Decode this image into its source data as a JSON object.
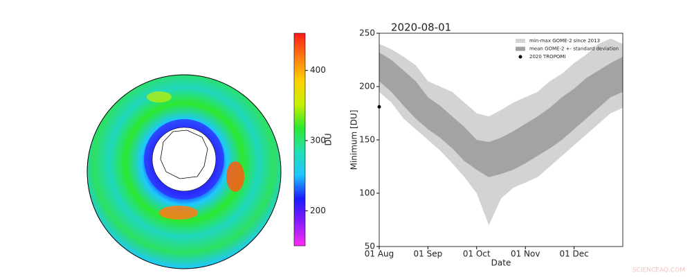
{
  "chart_data": [
    {
      "type": "colorbar",
      "label": "DU",
      "ylim": [
        150,
        453
      ],
      "yticks": [
        200,
        300,
        400
      ],
      "colors": [
        "#ff2cf0",
        "#8a1cff",
        "#1a1aff",
        "#1ec8ff",
        "#20e0b0",
        "#2ee82e",
        "#c8f000",
        "#ffd000",
        "#ff7a10",
        "#ff1a1a"
      ]
    },
    {
      "type": "area",
      "title": "2020-08-01",
      "ylabel": "Minimum [DU]",
      "xlabel": "Date",
      "categories": [
        "01 Aug",
        null,
        null,
        null,
        "01 Sep",
        null,
        null,
        null,
        "01 Oct",
        null,
        null,
        null,
        "01 Nov",
        null,
        null,
        null,
        "01 Dec",
        null,
        null,
        null,
        null
      ],
      "ylim": [
        50,
        250
      ],
      "yticks": [
        50,
        100,
        150,
        200,
        250
      ],
      "legend": "upper right",
      "series": [
        {
          "name": "min-max GOME-2 since 2013",
          "color": "#d3d3d3",
          "values": [
            [
              195,
              240
            ],
            [
              185,
              235
            ],
            [
              170,
              228
            ],
            [
              160,
              220
            ],
            [
              150,
              205
            ],
            [
              140,
              200
            ],
            [
              128,
              195
            ],
            [
              115,
              185
            ],
            [
              100,
              175
            ],
            [
              70,
              172
            ],
            [
              95,
              178
            ],
            [
              105,
              185
            ],
            [
              110,
              190
            ],
            [
              115,
              195
            ],
            [
              125,
              205
            ],
            [
              135,
              212
            ],
            [
              145,
              222
            ],
            [
              155,
              230
            ],
            [
              165,
              240
            ],
            [
              175,
              245
            ],
            [
              180,
              240
            ]
          ]
        },
        {
          "name": "mean GOME-2 +- standard deviation",
          "color": "#a3a3a3",
          "values": [
            [
              205,
              232
            ],
            [
              195,
              225
            ],
            [
              182,
              215
            ],
            [
              170,
              205
            ],
            [
              160,
              190
            ],
            [
              152,
              182
            ],
            [
              142,
              172
            ],
            [
              130,
              162
            ],
            [
              122,
              150
            ],
            [
              115,
              148
            ],
            [
              118,
              152
            ],
            [
              122,
              158
            ],
            [
              128,
              165
            ],
            [
              135,
              172
            ],
            [
              142,
              180
            ],
            [
              150,
              190
            ],
            [
              160,
              198
            ],
            [
              170,
              208
            ],
            [
              180,
              215
            ],
            [
              190,
              222
            ],
            [
              195,
              228
            ]
          ]
        },
        {
          "name": "2020 TROPOMI",
          "color": "#000000",
          "values": [
            181,
            null,
            null,
            null,
            null,
            null,
            null,
            null,
            null,
            null,
            null,
            null,
            null,
            null,
            null,
            null,
            null,
            null,
            null,
            null,
            null
          ]
        }
      ]
    }
  ],
  "watermark": "SCIENCEAQ.COM"
}
